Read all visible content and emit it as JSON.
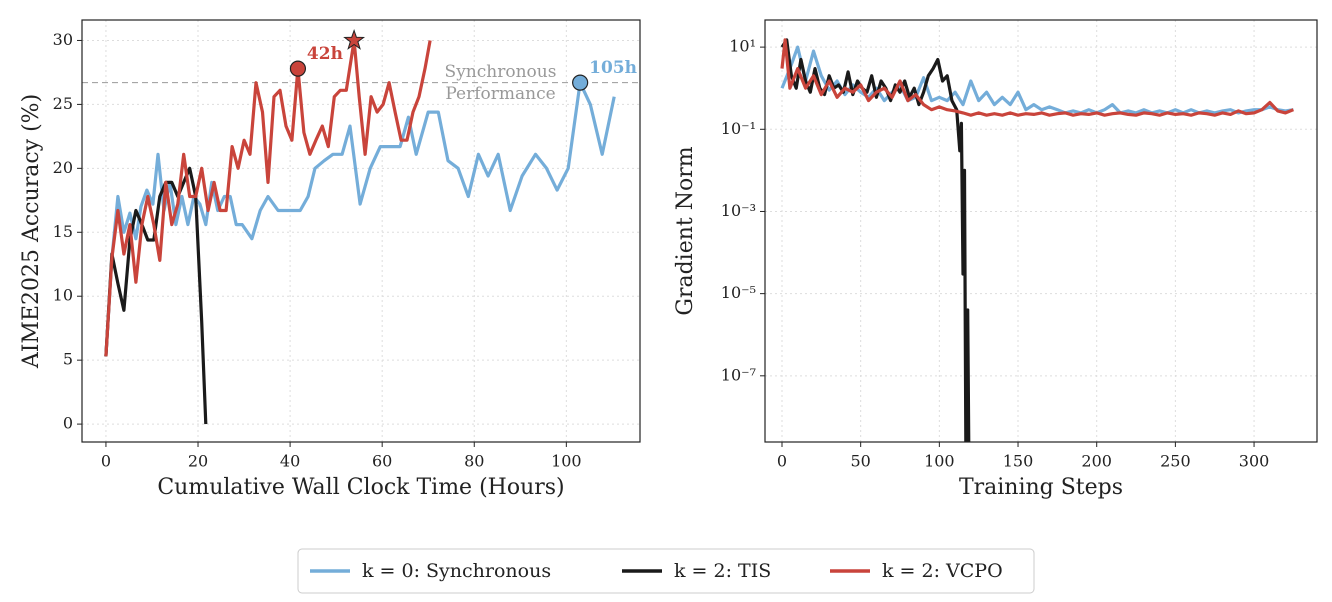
{
  "chart_data": [
    {
      "type": "line",
      "xlabel": "Cumulative Wall Clock Time (Hours)",
      "ylabel": "AIME2025 Accuracy (%)",
      "xlim": [
        -5.2,
        116
      ],
      "ylim": [
        -1.4,
        31.6
      ],
      "xticks": [
        0,
        20,
        40,
        60,
        80,
        100
      ],
      "yticks": [
        0,
        5,
        10,
        15,
        20,
        25,
        30
      ],
      "grid": true,
      "series": [
        {
          "name": "k = 0: Synchronous",
          "color": "#74add9",
          "x": [
            0,
            1.3,
            2.6,
            3.9,
            5.2,
            6.5,
            7.6,
            8.9,
            10.2,
            11.3,
            12.6,
            13.9,
            15.2,
            16.5,
            17.8,
            19.1,
            20.4,
            21.7,
            23,
            24.3,
            25.7,
            27,
            28.3,
            29.6,
            31.7,
            33.5,
            35.2,
            37.4,
            40,
            42.2,
            43.9,
            45.4,
            47.4,
            49.3,
            51.3,
            53,
            55.2,
            57.4,
            59.6,
            61.7,
            63.9,
            65.7,
            67.4,
            70,
            72.2,
            74.3,
            76.5,
            78.7,
            80.9,
            83,
            85.2,
            87.8,
            90.4,
            93.3,
            95.7,
            98,
            100.4,
            103,
            105.2,
            107.8,
            110.4
          ],
          "values": [
            5.3,
            13,
            17.8,
            15,
            16.5,
            14.5,
            17,
            18.3,
            17.2,
            21.1,
            16.7,
            18.9,
            15.6,
            17.8,
            15.6,
            17.8,
            17.2,
            15.6,
            18.9,
            16.7,
            17.8,
            17.8,
            15.6,
            15.6,
            14.5,
            16.7,
            17.8,
            16.7,
            16.7,
            16.7,
            17.8,
            20,
            20.6,
            21.1,
            21.1,
            23.3,
            17.2,
            20,
            21.7,
            21.7,
            21.7,
            24,
            21.1,
            24.4,
            24.4,
            20.6,
            20,
            17.8,
            21.1,
            19.4,
            21.1,
            16.7,
            19.4,
            21.1,
            20,
            18.3,
            20,
            26.7,
            25,
            21.1,
            25.6
          ]
        },
        {
          "name": "k = 2: TIS",
          "color": "#1a1a1a",
          "x": [
            0,
            1.3,
            2.6,
            3.9,
            5.2,
            6.5,
            7.8,
            9.1,
            10.4,
            11.7,
            13,
            14.3,
            15.6,
            16.9,
            18.2,
            19.5,
            20.8,
            21.7
          ],
          "values": [
            5.3,
            13.3,
            11,
            8.9,
            14.4,
            16.7,
            15.6,
            14.4,
            14.4,
            17.8,
            18.9,
            18.9,
            17.8,
            18.9,
            20,
            17.8,
            8,
            0
          ]
        },
        {
          "name": "k = 2: VCPO",
          "color": "#c9443b",
          "x": [
            0,
            1.3,
            2.6,
            3.9,
            5.2,
            6.5,
            7.8,
            9.1,
            10.4,
            11.7,
            13,
            14.3,
            15.6,
            16.9,
            18.2,
            19.5,
            20.8,
            22.2,
            23.5,
            24.8,
            26.1,
            27.4,
            28.7,
            30,
            31.3,
            32.6,
            34,
            35.2,
            36.5,
            37.8,
            39.1,
            40.4,
            41.7,
            43,
            44.3,
            45.6,
            47,
            48.3,
            49.6,
            50.9,
            52.2,
            53.9,
            55,
            56.3,
            57.6,
            58.9,
            60.2,
            61.5,
            62.8,
            64.1,
            65.4,
            66.7,
            68,
            69.3,
            70.4
          ],
          "values": [
            5.3,
            13,
            16.7,
            13.3,
            15.6,
            11.1,
            15.6,
            17.8,
            15.6,
            12.8,
            18.9,
            15.6,
            17.2,
            21.1,
            17.8,
            17.8,
            20,
            16.7,
            18.9,
            16.7,
            16.7,
            21.7,
            20,
            22.2,
            21.1,
            26.7,
            24.4,
            18.9,
            25.6,
            26.1,
            23.3,
            22.2,
            27.8,
            22.8,
            21.1,
            22.2,
            23.3,
            21.7,
            25.6,
            26.1,
            26.1,
            30,
            25.6,
            21.1,
            25.6,
            24.4,
            25,
            26.7,
            24.4,
            22.2,
            22.2,
            24.4,
            25.6,
            27.8,
            30
          ]
        }
      ],
      "reference_line": {
        "y": 26.7,
        "text": [
          "Synchronous",
          "Performance"
        ],
        "color": "#999999"
      },
      "annotations": [
        {
          "text": "42h",
          "x": 41.7,
          "y": 27.8,
          "color": "#c9443b"
        },
        {
          "text": "105h",
          "x": 103,
          "y": 26.7,
          "color": "#74add9"
        }
      ],
      "star": {
        "x": 53.9,
        "y": 30,
        "color": "#c9443b"
      }
    },
    {
      "type": "line",
      "xlabel": "Training Steps",
      "ylabel": "Gradient Norm",
      "log_y": true,
      "xlim": [
        -10.8,
        340
      ],
      "ylim": [
        2.45e-09,
        45.7
      ],
      "xticks": [
        0,
        50,
        100,
        150,
        200,
        250,
        300
      ],
      "yticks": [
        {
          "value": 10,
          "label": "10¹"
        },
        {
          "value": 0.1,
          "label": "10⁻¹"
        },
        {
          "value": 0.001,
          "label": "10⁻³"
        },
        {
          "value": 1e-05,
          "label": "10⁻⁵"
        },
        {
          "value": 1e-07,
          "label": "10⁻⁷"
        }
      ],
      "grid": true,
      "series": [
        {
          "color": "#74add9",
          "x": [
            0,
            5,
            10,
            15,
            20,
            25,
            30,
            35,
            40,
            45,
            50,
            55,
            60,
            65,
            70,
            75,
            80,
            85,
            90,
            95,
            100,
            105,
            110,
            115,
            120,
            125,
            130,
            135,
            140,
            145,
            150,
            155,
            160,
            165,
            170,
            175,
            180,
            185,
            190,
            195,
            200,
            205,
            210,
            215,
            220,
            225,
            230,
            235,
            240,
            245,
            250,
            255,
            260,
            265,
            270,
            275,
            280,
            285,
            290,
            295,
            300,
            305,
            310,
            315,
            320,
            325
          ],
          "values": [
            1,
            3,
            10,
            1.5,
            8,
            2,
            0.9,
            1.5,
            0.7,
            1.2,
            0.8,
            0.6,
            1,
            0.5,
            0.8,
            1.2,
            0.5,
            0.6,
            1.8,
            0.5,
            0.6,
            0.5,
            0.8,
            0.4,
            1.5,
            0.5,
            0.8,
            0.4,
            0.6,
            0.4,
            0.8,
            0.3,
            0.4,
            0.3,
            0.35,
            0.3,
            0.25,
            0.28,
            0.25,
            0.3,
            0.25,
            0.3,
            0.4,
            0.25,
            0.28,
            0.25,
            0.3,
            0.25,
            0.28,
            0.25,
            0.3,
            0.25,
            0.3,
            0.25,
            0.28,
            0.25,
            0.28,
            0.3,
            0.25,
            0.28,
            0.3,
            0.3,
            0.35,
            0.3,
            0.28,
            0.3
          ]
        },
        {
          "color": "#1a1a1a",
          "x": [
            0,
            3,
            6,
            9,
            12,
            15,
            18,
            21,
            24,
            27,
            30,
            33,
            36,
            39,
            42,
            45,
            48,
            51,
            54,
            57,
            60,
            63,
            66,
            69,
            72,
            75,
            78,
            81,
            84,
            87,
            90,
            93,
            96,
            99,
            102,
            105,
            108,
            111,
            113,
            114,
            115,
            116,
            117,
            118,
            119
          ],
          "values": [
            10,
            15,
            2,
            1,
            5,
            1.5,
            0.8,
            3,
            1,
            0.7,
            2,
            1,
            1.2,
            0.8,
            2.5,
            0.7,
            1.5,
            1,
            0.8,
            2,
            0.6,
            1.5,
            1,
            0.5,
            1.2,
            0.8,
            1.5,
            0.6,
            1,
            0.4,
            0.8,
            2,
            3,
            5,
            1.5,
            2,
            0.5,
            0.3,
            0.03,
            0.14,
            3e-05,
            0.01,
            1e-10,
            4e-06,
            1e-10
          ]
        },
        {
          "color": "#c9443b",
          "x": [
            0,
            2,
            5,
            10,
            15,
            20,
            25,
            30,
            35,
            40,
            45,
            50,
            55,
            60,
            65,
            70,
            75,
            80,
            85,
            90,
            95,
            100,
            105,
            110,
            115,
            120,
            125,
            130,
            135,
            140,
            145,
            150,
            155,
            160,
            165,
            170,
            175,
            180,
            185,
            190,
            195,
            200,
            205,
            210,
            215,
            220,
            225,
            230,
            235,
            240,
            245,
            250,
            255,
            260,
            265,
            270,
            275,
            280,
            285,
            290,
            295,
            300,
            305,
            310,
            315,
            320,
            325
          ],
          "values": [
            3,
            15,
            1,
            3,
            1,
            2,
            0.7,
            1.5,
            0.6,
            1,
            0.8,
            1.2,
            0.5,
            0.8,
            1,
            0.6,
            1.5,
            0.5,
            0.7,
            0.4,
            0.3,
            0.35,
            0.3,
            0.28,
            0.25,
            0.22,
            0.25,
            0.22,
            0.24,
            0.22,
            0.25,
            0.22,
            0.24,
            0.23,
            0.25,
            0.22,
            0.24,
            0.25,
            0.22,
            0.24,
            0.23,
            0.25,
            0.22,
            0.24,
            0.25,
            0.23,
            0.22,
            0.25,
            0.24,
            0.22,
            0.25,
            0.23,
            0.24,
            0.22,
            0.25,
            0.24,
            0.22,
            0.25,
            0.23,
            0.28,
            0.24,
            0.25,
            0.3,
            0.45,
            0.28,
            0.25,
            0.3
          ]
        }
      ]
    }
  ]
}
